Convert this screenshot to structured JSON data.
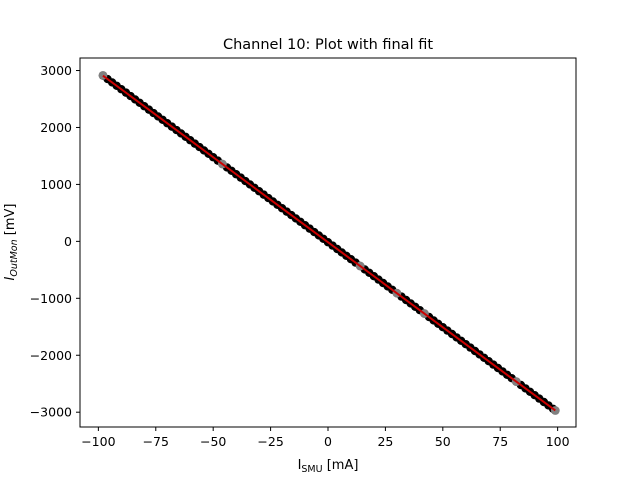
{
  "chart_data": {
    "type": "scatter",
    "title": "Channel 10: Plot with final fit",
    "xlabel": {
      "main": "I",
      "sub": "SMU",
      "unit": " [mA]"
    },
    "ylabel": {
      "main": "I",
      "sub": "OutMon",
      "unit": " [mV]"
    },
    "xlim": [
      -108,
      108
    ],
    "ylim": [
      -3260,
      3220
    ],
    "x_ticks": [
      -100,
      -75,
      -50,
      -25,
      0,
      25,
      50,
      75,
      100
    ],
    "x_tick_labels": [
      "−100",
      "−75",
      "−50",
      "−25",
      "0",
      "25",
      "50",
      "75",
      "100"
    ],
    "y_ticks": [
      -3000,
      -2000,
      -1000,
      0,
      1000,
      2000,
      3000
    ],
    "y_tick_labels": [
      "−3000",
      "−2000",
      "−1000",
      "0",
      "1000",
      "2000",
      "3000"
    ],
    "grid": false,
    "series": [
      {
        "role": "measurements",
        "color": "#000000",
        "x_start": -98,
        "x_end": 98,
        "x_step": 2,
        "slope": -29.85,
        "intercept": -15
      },
      {
        "role": "excluded-points",
        "color": "#808080",
        "x": [
          -98,
          -46,
          14,
          30,
          42,
          82,
          99
        ],
        "y": [
          2915,
          1358,
          -433,
          -910,
          -1268,
          -2463,
          -2970
        ]
      },
      {
        "role": "fit",
        "color": "#cc0000",
        "x": [
          -98,
          99
        ],
        "y": [
          2910,
          -2970
        ]
      }
    ]
  }
}
